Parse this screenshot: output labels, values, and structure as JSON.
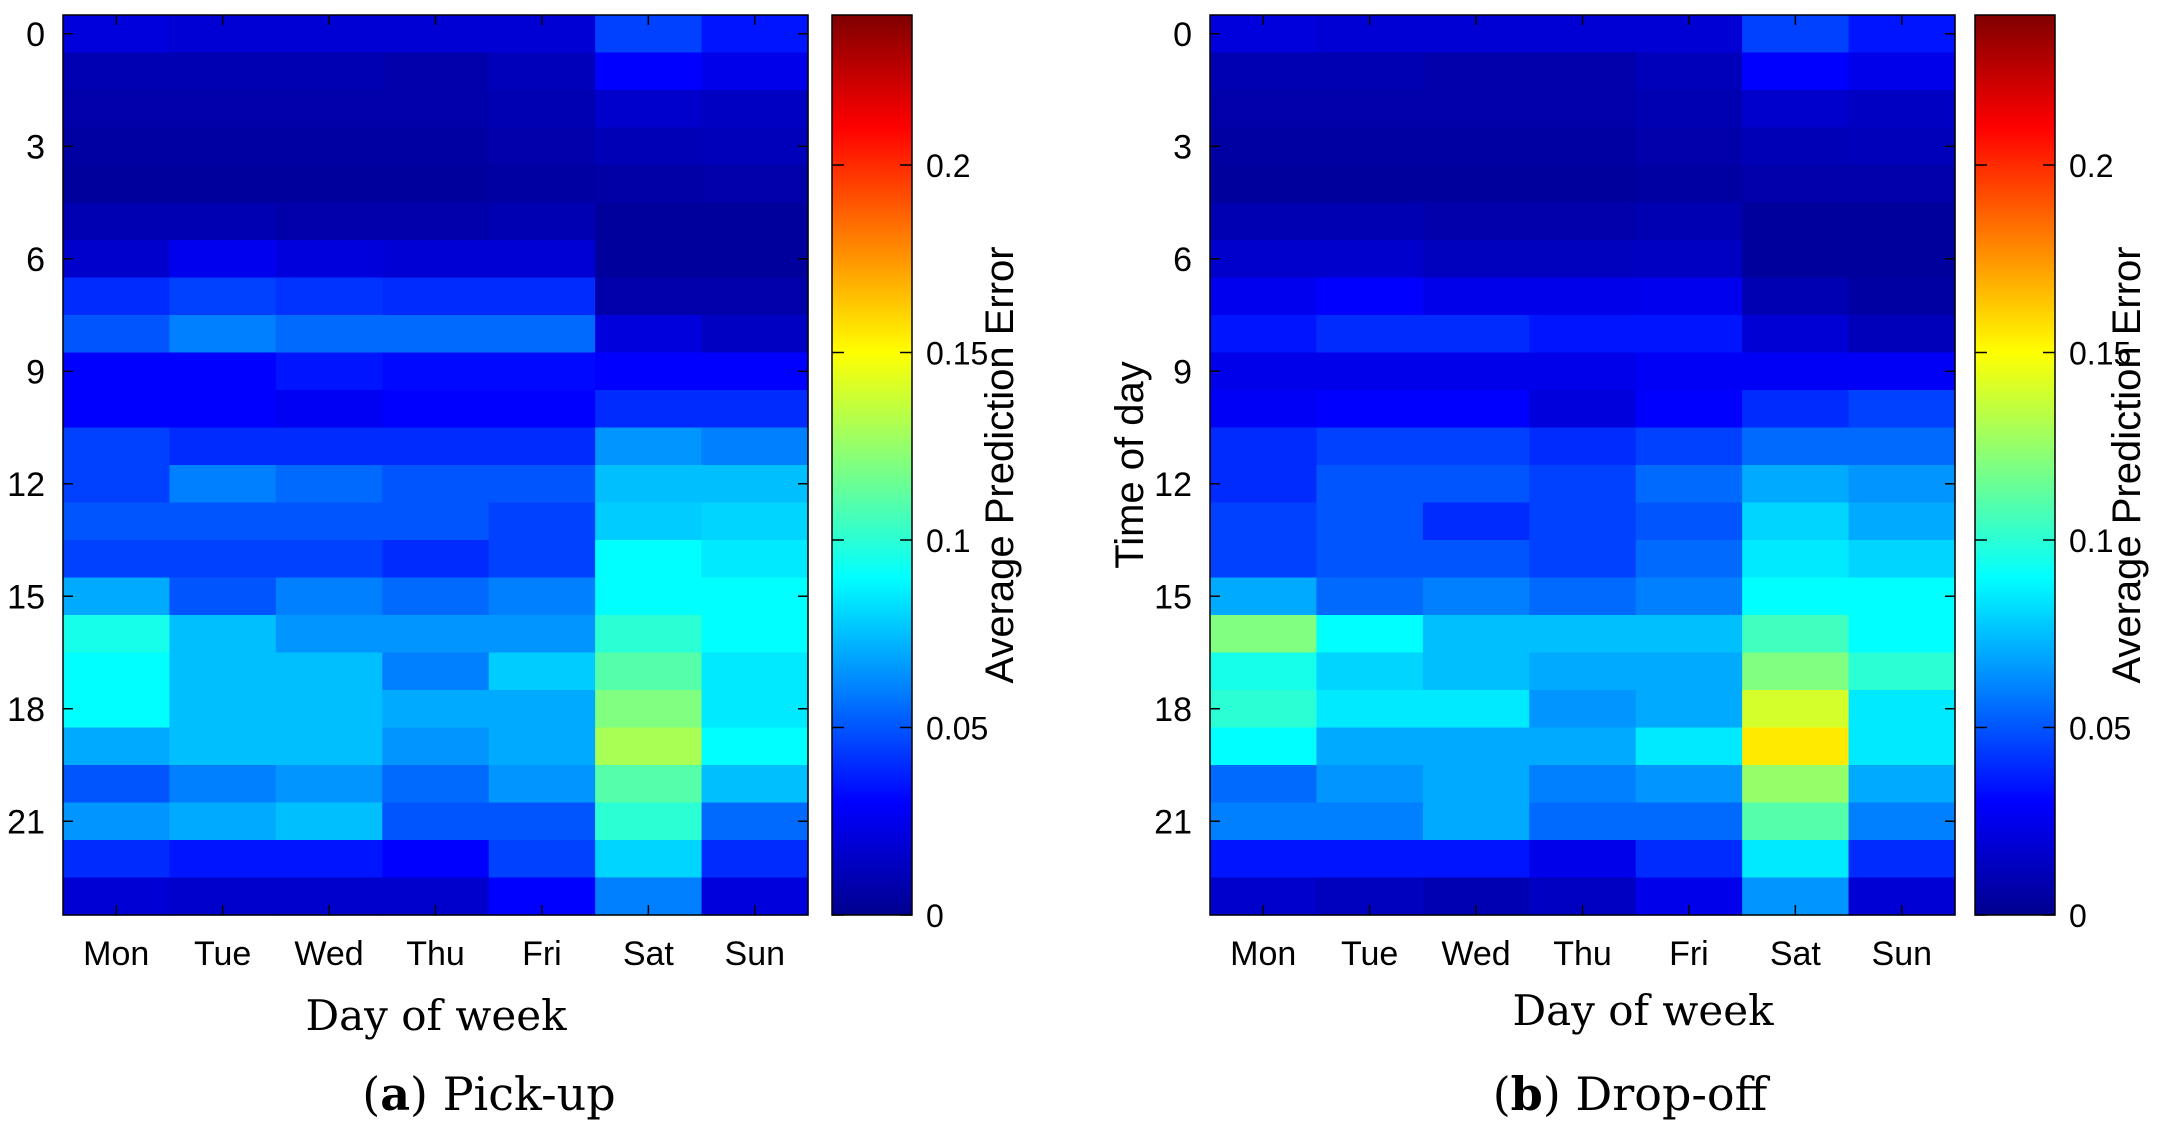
{
  "chart_data": [
    {
      "type": "heatmap",
      "panel_letter": "a",
      "caption": ") Pick-up",
      "xlabel": "Day of week",
      "ylabel": "",
      "x_categories": [
        "Mon",
        "Tue",
        "Wed",
        "Thu",
        "Fri",
        "Sat",
        "Sun"
      ],
      "y_ticks": [
        0,
        3,
        6,
        9,
        12,
        15,
        18,
        21
      ],
      "y_range": [
        0,
        23
      ],
      "colorbar_label": "Average Prediction Error",
      "colorbar_ticks": [
        0,
        0.05,
        0.1,
        0.15,
        0.2
      ],
      "colorbar_range": [
        0,
        0.24
      ],
      "values": [
        [
          0.022,
          0.02,
          0.02,
          0.02,
          0.02,
          0.045,
          0.035
        ],
        [
          0.012,
          0.012,
          0.012,
          0.01,
          0.014,
          0.03,
          0.025
        ],
        [
          0.01,
          0.01,
          0.01,
          0.01,
          0.012,
          0.018,
          0.016
        ],
        [
          0.008,
          0.008,
          0.008,
          0.008,
          0.01,
          0.013,
          0.014
        ],
        [
          0.007,
          0.007,
          0.007,
          0.007,
          0.008,
          0.009,
          0.01
        ],
        [
          0.012,
          0.012,
          0.01,
          0.01,
          0.012,
          0.007,
          0.007
        ],
        [
          0.018,
          0.026,
          0.022,
          0.02,
          0.02,
          0.007,
          0.007
        ],
        [
          0.04,
          0.045,
          0.042,
          0.04,
          0.04,
          0.01,
          0.01
        ],
        [
          0.05,
          0.06,
          0.055,
          0.055,
          0.055,
          0.022,
          0.016
        ],
        [
          0.03,
          0.03,
          0.035,
          0.032,
          0.032,
          0.03,
          0.03
        ],
        [
          0.03,
          0.03,
          0.027,
          0.03,
          0.03,
          0.04,
          0.04
        ],
        [
          0.045,
          0.04,
          0.04,
          0.04,
          0.04,
          0.065,
          0.06
        ],
        [
          0.045,
          0.06,
          0.055,
          0.05,
          0.05,
          0.075,
          0.075
        ],
        [
          0.05,
          0.05,
          0.05,
          0.05,
          0.045,
          0.078,
          0.08
        ],
        [
          0.045,
          0.045,
          0.045,
          0.04,
          0.045,
          0.09,
          0.085
        ],
        [
          0.07,
          0.05,
          0.06,
          0.055,
          0.06,
          0.09,
          0.09
        ],
        [
          0.095,
          0.075,
          0.065,
          0.065,
          0.065,
          0.1,
          0.09
        ],
        [
          0.09,
          0.075,
          0.075,
          0.06,
          0.078,
          0.11,
          0.085
        ],
        [
          0.09,
          0.075,
          0.075,
          0.07,
          0.07,
          0.12,
          0.085
        ],
        [
          0.07,
          0.075,
          0.075,
          0.065,
          0.07,
          0.13,
          0.09
        ],
        [
          0.05,
          0.06,
          0.065,
          0.055,
          0.065,
          0.11,
          0.075
        ],
        [
          0.065,
          0.07,
          0.075,
          0.05,
          0.05,
          0.1,
          0.055
        ],
        [
          0.04,
          0.035,
          0.035,
          0.03,
          0.045,
          0.08,
          0.04
        ],
        [
          0.02,
          0.018,
          0.018,
          0.018,
          0.03,
          0.06,
          0.022
        ]
      ]
    },
    {
      "type": "heatmap",
      "panel_letter": "b",
      "caption": ") Drop-off",
      "xlabel": "Day of week",
      "ylabel": "Time of day",
      "x_categories": [
        "Mon",
        "Tue",
        "Wed",
        "Thu",
        "Fri",
        "Sat",
        "Sun"
      ],
      "y_ticks": [
        0,
        3,
        6,
        9,
        12,
        15,
        18,
        21
      ],
      "y_range": [
        0,
        23
      ],
      "colorbar_label": "Average Prediction Error",
      "colorbar_ticks": [
        0,
        0.05,
        0.1,
        0.15,
        0.2
      ],
      "colorbar_range": [
        0,
        0.24
      ],
      "values": [
        [
          0.022,
          0.02,
          0.02,
          0.02,
          0.02,
          0.045,
          0.035
        ],
        [
          0.012,
          0.012,
          0.01,
          0.01,
          0.014,
          0.03,
          0.025
        ],
        [
          0.01,
          0.01,
          0.01,
          0.01,
          0.012,
          0.018,
          0.016
        ],
        [
          0.008,
          0.008,
          0.008,
          0.008,
          0.01,
          0.013,
          0.014
        ],
        [
          0.007,
          0.007,
          0.007,
          0.007,
          0.008,
          0.01,
          0.01
        ],
        [
          0.012,
          0.012,
          0.01,
          0.01,
          0.012,
          0.007,
          0.007
        ],
        [
          0.018,
          0.018,
          0.015,
          0.015,
          0.016,
          0.007,
          0.007
        ],
        [
          0.026,
          0.03,
          0.025,
          0.025,
          0.026,
          0.012,
          0.008
        ],
        [
          0.035,
          0.04,
          0.04,
          0.035,
          0.035,
          0.02,
          0.014
        ],
        [
          0.025,
          0.025,
          0.025,
          0.025,
          0.028,
          0.028,
          0.028
        ],
        [
          0.028,
          0.03,
          0.03,
          0.022,
          0.03,
          0.04,
          0.045
        ],
        [
          0.04,
          0.045,
          0.045,
          0.04,
          0.045,
          0.055,
          0.055
        ],
        [
          0.04,
          0.05,
          0.05,
          0.045,
          0.055,
          0.07,
          0.065
        ],
        [
          0.045,
          0.05,
          0.04,
          0.045,
          0.05,
          0.08,
          0.07
        ],
        [
          0.045,
          0.05,
          0.05,
          0.045,
          0.055,
          0.085,
          0.08
        ],
        [
          0.07,
          0.055,
          0.06,
          0.055,
          0.06,
          0.09,
          0.09
        ],
        [
          0.12,
          0.09,
          0.075,
          0.075,
          0.075,
          0.105,
          0.09
        ],
        [
          0.095,
          0.08,
          0.075,
          0.07,
          0.07,
          0.12,
          0.1
        ],
        [
          0.1,
          0.085,
          0.085,
          0.065,
          0.07,
          0.14,
          0.085
        ],
        [
          0.09,
          0.07,
          0.07,
          0.07,
          0.085,
          0.155,
          0.085
        ],
        [
          0.055,
          0.065,
          0.07,
          0.06,
          0.065,
          0.125,
          0.07
        ],
        [
          0.06,
          0.06,
          0.07,
          0.055,
          0.055,
          0.11,
          0.06
        ],
        [
          0.035,
          0.035,
          0.035,
          0.025,
          0.04,
          0.085,
          0.04
        ],
        [
          0.018,
          0.015,
          0.012,
          0.016,
          0.025,
          0.065,
          0.02
        ]
      ]
    }
  ]
}
